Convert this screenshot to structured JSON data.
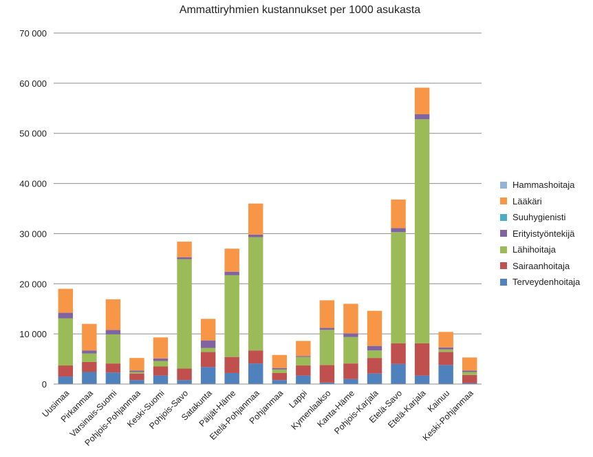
{
  "chart_data": {
    "type": "bar",
    "stacked": true,
    "title": "Ammattiryhmien kustannukset per 1000 asukasta",
    "xlabel": "",
    "ylabel": "",
    "ylim": [
      0,
      70000
    ],
    "y_ticks": [
      "0",
      "10 000",
      "20 000",
      "30 000",
      "40 000",
      "50 000",
      "60 000",
      "70 000"
    ],
    "grid": true,
    "legend_position": "right",
    "categories": [
      "Uusimaa",
      "Pirkanmaa",
      "Varsinais-Suomi",
      "Pohjois-Pohjanmaa",
      "Keski-Suomi",
      "Pohjois-Savo",
      "Satakunta",
      "Päijät-Häme",
      "Etelä-Pohjanmaa",
      "Pohjanmaa",
      "Lappi",
      "Kymenlaakso",
      "Kanta-Häme",
      "Pohjois-Karjala",
      "Etelä-Savo",
      "Etelä-Karjala",
      "Kainuu",
      "Keski-Pohjanmaa"
    ],
    "series": [
      {
        "name": "Terveydenhoitaja",
        "color": "#4f81bd",
        "values": [
          1500,
          2400,
          2300,
          800,
          1700,
          800,
          3400,
          2200,
          4100,
          800,
          1700,
          300,
          1000,
          2100,
          4000,
          1700,
          3800,
          200
        ]
      },
      {
        "name": "Sairaanhoitaja",
        "color": "#c0504d",
        "values": [
          2200,
          2000,
          1800,
          1300,
          1800,
          2300,
          3000,
          3200,
          2600,
          1400,
          2000,
          3500,
          3100,
          3100,
          4100,
          6400,
          2600,
          1600
        ]
      },
      {
        "name": "Lähihoitaja",
        "color": "#9bbb59",
        "values": [
          9400,
          1700,
          5800,
          300,
          1100,
          21800,
          800,
          16300,
          22600,
          700,
          1700,
          7000,
          5300,
          1500,
          22200,
          44700,
          500,
          600
        ]
      },
      {
        "name": "Erityistyöntekijä",
        "color": "#8064a2",
        "values": [
          1100,
          600,
          900,
          300,
          500,
          400,
          1500,
          700,
          500,
          300,
          200,
          400,
          700,
          900,
          800,
          1000,
          400,
          300
        ]
      },
      {
        "name": "Suuhygienisti",
        "color": "#4bacc6",
        "values": [
          0,
          0,
          0,
          0,
          0,
          0,
          0,
          0,
          0,
          0,
          0,
          0,
          0,
          0,
          0,
          0,
          0,
          0
        ]
      },
      {
        "name": "Lääkäri",
        "color": "#f79646",
        "values": [
          4800,
          5300,
          6100,
          2500,
          4200,
          3100,
          4300,
          4600,
          6200,
          2600,
          3000,
          5500,
          5900,
          7000,
          5700,
          5300,
          3100,
          2600
        ]
      },
      {
        "name": "Hammashoitaja",
        "color": "#95b3d7",
        "values": [
          0,
          0,
          0,
          0,
          0,
          0,
          0,
          0,
          0,
          0,
          0,
          0,
          0,
          0,
          0,
          0,
          0,
          0
        ]
      }
    ]
  }
}
